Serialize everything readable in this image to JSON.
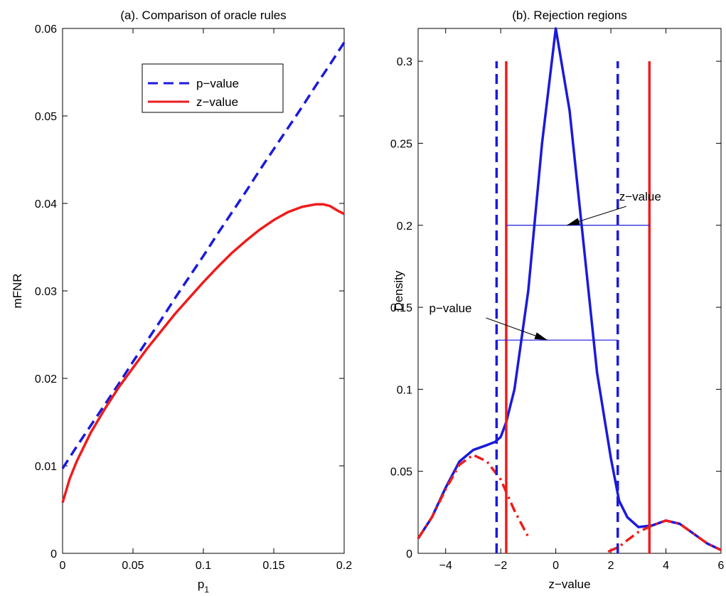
{
  "chart_data": [
    {
      "type": "line",
      "title": "(a). Comparison of oracle rules",
      "xlabel": "p",
      "xlabel_subscript": "1",
      "ylabel": "mFNR",
      "xlim": [
        0,
        0.2
      ],
      "ylim": [
        0,
        0.06
      ],
      "xticks": [
        0,
        0.05,
        0.1,
        0.15,
        0.2
      ],
      "xtick_labels": [
        "0",
        "0.05",
        "0.1",
        "0.15",
        "0.2"
      ],
      "yticks": [
        0,
        0.01,
        0.02,
        0.03,
        0.04,
        0.05,
        0.06
      ],
      "ytick_labels": [
        "0",
        "0.01",
        "0.02",
        "0.03",
        "0.04",
        "0.05",
        "0.06"
      ],
      "grid": false,
      "legend_position": "top-right",
      "series": [
        {
          "name": "p−value",
          "color": "#1a1adb",
          "style": "dashed",
          "x": [
            0,
            0.01,
            0.02,
            0.03,
            0.04,
            0.05,
            0.06,
            0.07,
            0.08,
            0.09,
            0.1,
            0.11,
            0.12,
            0.13,
            0.14,
            0.15,
            0.16,
            0.17,
            0.18,
            0.19,
            0.2
          ],
          "y": [
            0.0097,
            0.0122,
            0.0146,
            0.017,
            0.0194,
            0.0219,
            0.0243,
            0.0267,
            0.0292,
            0.0316,
            0.034,
            0.0365,
            0.0389,
            0.0413,
            0.0438,
            0.0462,
            0.0486,
            0.051,
            0.0535,
            0.0559,
            0.0584
          ]
        },
        {
          "name": "z−value",
          "color": "#ee1c1c",
          "style": "solid",
          "x": [
            0,
            0.005,
            0.01,
            0.02,
            0.03,
            0.04,
            0.05,
            0.06,
            0.07,
            0.08,
            0.09,
            0.1,
            0.11,
            0.12,
            0.13,
            0.14,
            0.15,
            0.16,
            0.17,
            0.18,
            0.185,
            0.19,
            0.195,
            0.2
          ],
          "y": [
            0.0058,
            0.0085,
            0.0105,
            0.0138,
            0.0165,
            0.019,
            0.0212,
            0.0234,
            0.0254,
            0.0274,
            0.0292,
            0.031,
            0.0327,
            0.0343,
            0.0357,
            0.037,
            0.0381,
            0.039,
            0.0396,
            0.0399,
            0.0399,
            0.0397,
            0.0392,
            0.0388
          ]
        }
      ]
    },
    {
      "type": "line",
      "title": "(b). Rejection regions",
      "xlabel": "z−value",
      "ylabel": "Density",
      "xlim": [
        -5,
        6
      ],
      "ylim": [
        0,
        0.32
      ],
      "xticks": [
        -4,
        -2,
        0,
        2,
        4,
        6
      ],
      "xtick_labels": [
        "−4",
        "−2",
        "0",
        "2",
        "4",
        "6"
      ],
      "yticks": [
        0,
        0.05,
        0.1,
        0.15,
        0.2,
        0.25,
        0.3
      ],
      "ytick_labels": [
        "0",
        "0.05",
        "0.1",
        "0.15",
        "0.2",
        "0.25",
        "0.3"
      ],
      "grid": false,
      "series": [
        {
          "name": "",
          "color": "#1a1adb",
          "style": "solid",
          "x": [
            -5,
            -4.5,
            -4,
            -3.5,
            -3,
            -2.5,
            -2.2,
            -2,
            -1.8,
            -1.5,
            -1,
            -0.5,
            0,
            0.5,
            1,
            1.5,
            2,
            2.3,
            2.6,
            3,
            3.5,
            4,
            4.5,
            5,
            5.5,
            6
          ],
          "y": [
            0.009,
            0.022,
            0.04,
            0.056,
            0.063,
            0.066,
            0.068,
            0.071,
            0.08,
            0.1,
            0.16,
            0.25,
            0.32,
            0.27,
            0.19,
            0.11,
            0.058,
            0.032,
            0.022,
            0.016,
            0.017,
            0.02,
            0.018,
            0.012,
            0.006,
            0.002
          ]
        },
        {
          "name": "",
          "color": "#ee1c1c",
          "style": "dashdot",
          "x": [
            -5,
            -4.5,
            -4,
            -3.5,
            -3,
            -2.5,
            -2,
            -1.5,
            -1
          ],
          "y": [
            0.009,
            0.022,
            0.039,
            0.054,
            0.06,
            0.056,
            0.045,
            0.026,
            0.01
          ]
        },
        {
          "name": "",
          "color": "#ee1c1c",
          "style": "dashdot",
          "x": [
            1.9,
            2.3,
            2.6,
            3,
            3.5,
            4,
            4.5,
            5,
            5.5,
            6
          ],
          "y": [
            0.001,
            0.004,
            0.008,
            0.013,
            0.017,
            0.02,
            0.018,
            0.012,
            0.006,
            0.002
          ]
        }
      ],
      "vertical_lines": [
        {
          "x": -2.15,
          "y_top": 0.3,
          "color": "#1a1adb",
          "style": "dashed"
        },
        {
          "x": 2.25,
          "y_top": 0.3,
          "color": "#1a1adb",
          "style": "dashed"
        },
        {
          "x": -1.8,
          "y_top": 0.3,
          "color": "#ee1c1c",
          "style": "solid"
        },
        {
          "x": 3.4,
          "y_top": 0.3,
          "color": "#ee1c1c",
          "style": "solid"
        }
      ],
      "horizontal_segments": [
        {
          "x1": -1.8,
          "x2": 3.4,
          "y": 0.2,
          "color": "#1a1adb"
        },
        {
          "x1": -2.15,
          "x2": 2.25,
          "y": 0.13,
          "color": "#1a1adb"
        }
      ],
      "annotations": [
        {
          "text": "z−value",
          "x": 2.3,
          "y": 0.215,
          "arrow_to": [
            0.4,
            0.2
          ]
        },
        {
          "text": "p−value",
          "x": -4.6,
          "y": 0.147,
          "arrow_to": [
            -0.3,
            0.13
          ]
        }
      ]
    }
  ]
}
